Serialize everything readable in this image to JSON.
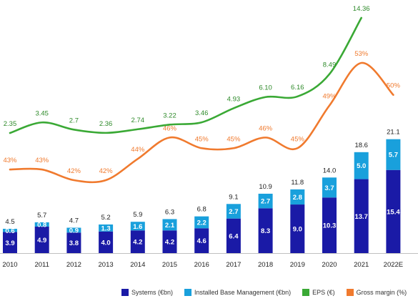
{
  "chart_data": {
    "type": "bar",
    "categories": [
      "2010",
      "2011",
      "2012",
      "2013",
      "2014",
      "2015",
      "2016",
      "2017",
      "2018",
      "2019",
      "2020",
      "2021",
      "2022E"
    ],
    "series": [
      {
        "name": "Systems (€bn)",
        "color": "#1a1aa6",
        "values": [
          3.9,
          4.9,
          3.8,
          4.0,
          4.2,
          4.2,
          4.6,
          6.4,
          8.3,
          9.0,
          10.3,
          13.7,
          15.4
        ]
      },
      {
        "name": "Installed Base Management (€bn)",
        "color": "#19a0dc",
        "values": [
          0.6,
          0.8,
          0.9,
          1.3,
          1.6,
          2.1,
          2.2,
          2.7,
          2.7,
          2.8,
          3.7,
          5.0,
          5.7
        ]
      },
      {
        "name": "EPS (€)",
        "color": "#3aa935",
        "values": [
          2.35,
          3.45,
          2.7,
          2.36,
          2.74,
          3.22,
          3.46,
          4.93,
          6.1,
          6.16,
          8.49,
          14.36,
          null
        ]
      },
      {
        "name": "Gross margin (%)",
        "color": "#f07a2e",
        "values": [
          43,
          43,
          42,
          42,
          44,
          46,
          45,
          45,
          46,
          45,
          49,
          53,
          50
        ]
      }
    ],
    "totals": [
      4.5,
      5.7,
      4.7,
      5.2,
      5.9,
      6.3,
      6.8,
      9.1,
      10.9,
      11.8,
      14.0,
      18.6,
      21.1
    ],
    "labels": {
      "systems": [
        "3.9",
        "4.9",
        "3.8",
        "4.0",
        "4.2",
        "4.2",
        "4.6",
        "6.4",
        "8.3",
        "9.0",
        "10.3",
        "13.7",
        "15.4"
      ],
      "ibm": [
        "0.6",
        "0.8",
        "0.9",
        "1.3",
        "1.6",
        "2.1",
        "2.2",
        "2.7",
        "2.7",
        "2.8",
        "3.7",
        "5.0",
        "5.7"
      ],
      "totals": [
        "4.5",
        "5.7",
        "4.7",
        "5.2",
        "5.9",
        "6.3",
        "6.8",
        "9.1",
        "10.9",
        "11.8",
        "14.0",
        "18.6",
        "21.1"
      ],
      "eps": [
        "2.35",
        "3.45",
        "2.7",
        "2.36",
        "2.74",
        "3.22",
        "3.46",
        "4.93",
        "6.10",
        "6.16",
        "8.49",
        "14.36",
        ""
      ],
      "gm": [
        "43%",
        "43%",
        "42%",
        "42%",
        "44%",
        "46%",
        "45%",
        "45%",
        "46%",
        "45%",
        "49%",
        "53%",
        "50%"
      ]
    },
    "legend_position": "bottom-right",
    "grid": false
  },
  "legend": [
    {
      "label": "Systems (€bn)",
      "color": "#1a1aa6",
      "name": "legend-systems"
    },
    {
      "label": "Installed Base Management (€bn)",
      "color": "#19a0dc",
      "name": "legend-ibm"
    },
    {
      "label": "EPS (€)",
      "color": "#3aa935",
      "name": "legend-eps"
    },
    {
      "label": "Gross margin (%)",
      "color": "#f07a2e",
      "name": "legend-gross-margin"
    }
  ]
}
